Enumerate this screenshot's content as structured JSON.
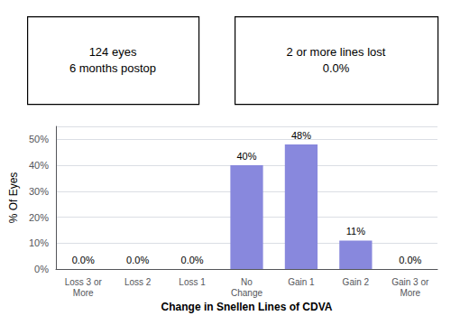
{
  "chart_data": {
    "type": "bar",
    "categories": [
      "Loss 3 or\nMore",
      "Loss 2",
      "Loss 1",
      "No\nChange",
      "Gain 1",
      "Gain 2",
      "Gain 3 or\nMore"
    ],
    "values": [
      0.0,
      0.0,
      0.0,
      40.0,
      48.0,
      11.0,
      0.0
    ],
    "value_labels": [
      "0.0%",
      "0.0%",
      "0.0%",
      "40%",
      "48%",
      "11%",
      "0.0%"
    ],
    "data_labels": true,
    "color": "#8888dd",
    "ylabel": "% Of Eyes",
    "xlabel": "Change in Snellen Lines of CDVA",
    "ylim": [
      0,
      55
    ],
    "yticks": [
      {
        "value": 0,
        "label": "0%"
      },
      {
        "value": 10,
        "label": "10%"
      },
      {
        "value": 20,
        "label": "20%"
      },
      {
        "value": 30,
        "label": "30%"
      },
      {
        "value": 40,
        "label": "40%"
      },
      {
        "value": 50,
        "label": "50%"
      }
    ],
    "grid": true,
    "annotations": [
      "124 eyes\n6 months postop",
      "2 or more lines lost\n0.0%"
    ]
  }
}
